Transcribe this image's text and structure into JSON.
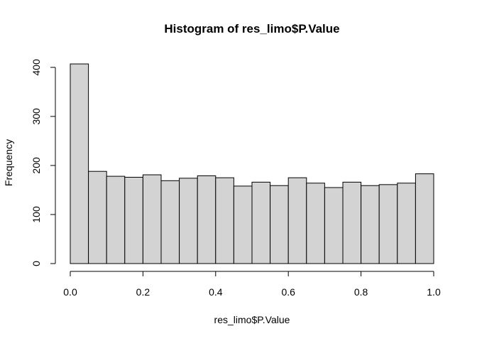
{
  "chart_data": {
    "type": "bar",
    "title": "Histogram of res_limo$P.Value",
    "xlabel": "res_limo$P.Value",
    "ylabel": "Frequency",
    "bin_edges": [
      0.0,
      0.05,
      0.1,
      0.15,
      0.2,
      0.25,
      0.3,
      0.35,
      0.4,
      0.45,
      0.5,
      0.55,
      0.6,
      0.65,
      0.7,
      0.75,
      0.8,
      0.85,
      0.9,
      0.95,
      1.0
    ],
    "values": [
      407,
      188,
      178,
      176,
      181,
      169,
      174,
      179,
      175,
      158,
      166,
      159,
      175,
      164,
      155,
      166,
      159,
      161,
      164,
      183
    ],
    "xlim": [
      0,
      1
    ],
    "ylim": [
      0,
      407
    ],
    "x_ticks": [
      0.0,
      0.2,
      0.4,
      0.6,
      0.8,
      1.0
    ],
    "x_tick_labels": [
      "0.0",
      "0.2",
      "0.4",
      "0.6",
      "0.8",
      "1.0"
    ],
    "y_ticks": [
      0,
      100,
      200,
      300,
      400
    ],
    "y_tick_labels": [
      "0",
      "100",
      "200",
      "300",
      "400"
    ],
    "grid": false,
    "bar_fill": "#d3d3d3",
    "bar_edge": "#000000"
  }
}
